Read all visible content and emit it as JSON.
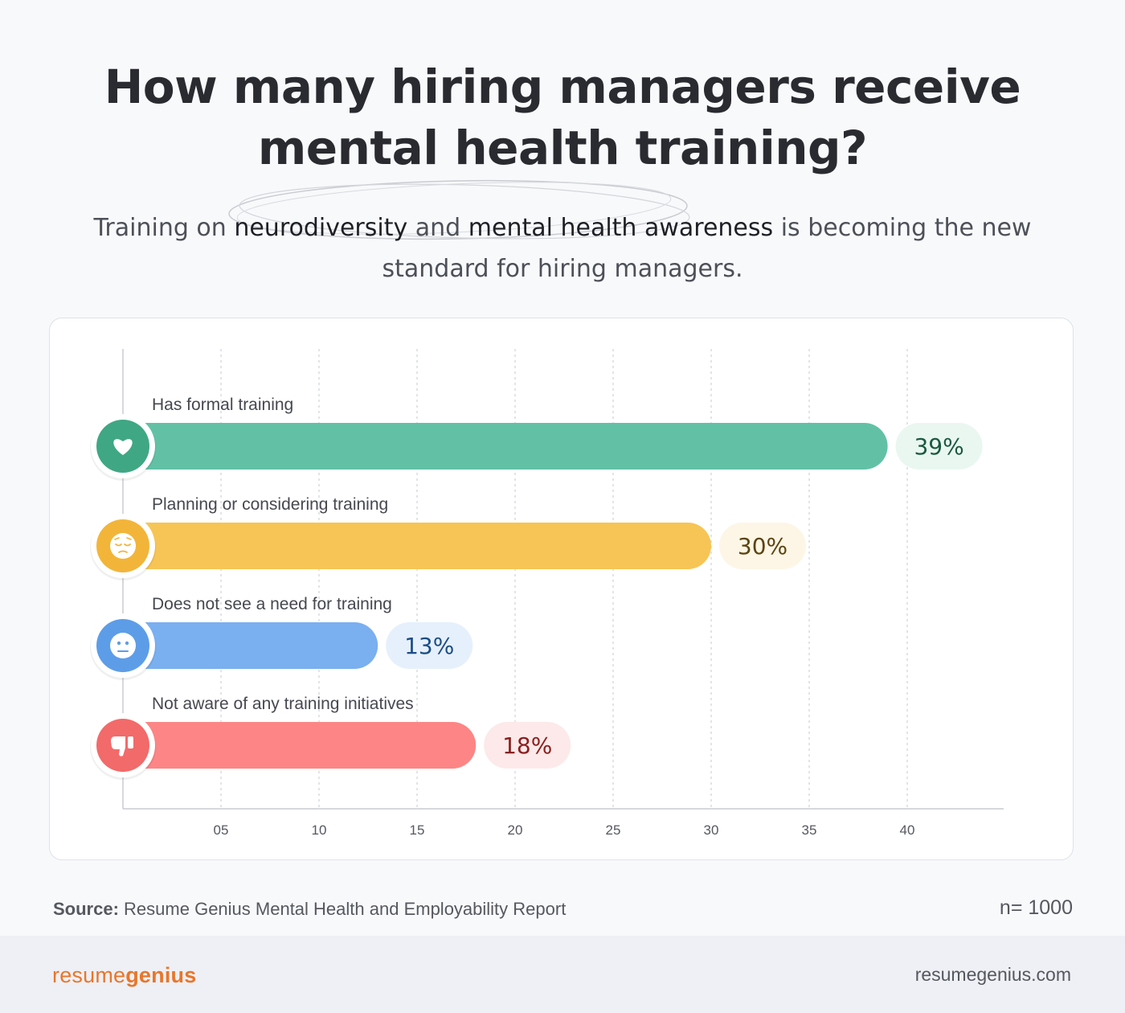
{
  "title": {
    "line1": "How many hiring managers receive",
    "line2": "mental health training?"
  },
  "subtitle": {
    "p1": "Training on ",
    "b1": "neurodiversity",
    "p2": " and ",
    "b2": "mental health awareness",
    "p3": " is becoming the new standard for hiring managers."
  },
  "chart_data": {
    "type": "bar",
    "orientation": "horizontal",
    "categories": [
      "Has formal training",
      "Planning or considering training",
      "Does not see a need for training",
      "Not aware of any training initiatives"
    ],
    "values": [
      39,
      30,
      13,
      18
    ],
    "value_labels": [
      "39%",
      "30%",
      "13%",
      "18%"
    ],
    "icons": [
      "heart-icon",
      "worried-face-icon",
      "neutral-face-icon",
      "thumbs-down-icon"
    ],
    "colors": [
      "#62c1a5",
      "#f7c555",
      "#7aaff0",
      "#fd8585"
    ],
    "badge_bg": [
      "#eaf7f1",
      "#fdf6e6",
      "#e6f0fc",
      "#fde9e9"
    ],
    "badge_text": [
      "#1b5a40",
      "#5c4410",
      "#1c4d86",
      "#8a1f20"
    ],
    "icon_dark": [
      "#3fa784",
      "#f2b53a",
      "#5d9de8",
      "#f26a6a"
    ],
    "x_ticks": [
      5,
      10,
      15,
      20,
      25,
      30,
      35,
      40
    ],
    "x_tick_labels": [
      "05",
      "10",
      "15",
      "20",
      "25",
      "30",
      "35",
      "40"
    ],
    "xlim": [
      0,
      45
    ],
    "grid": true,
    "grid_style": "dashed vertical",
    "xlabel": "",
    "ylabel": ""
  },
  "source": {
    "label": "Source:",
    "text": "Resume Genius Mental Health and Employability Report"
  },
  "n_count": "n= 1000",
  "footer": {
    "logo_part1": "resume",
    "logo_part2": "genius",
    "site": "resumegenius.com"
  }
}
